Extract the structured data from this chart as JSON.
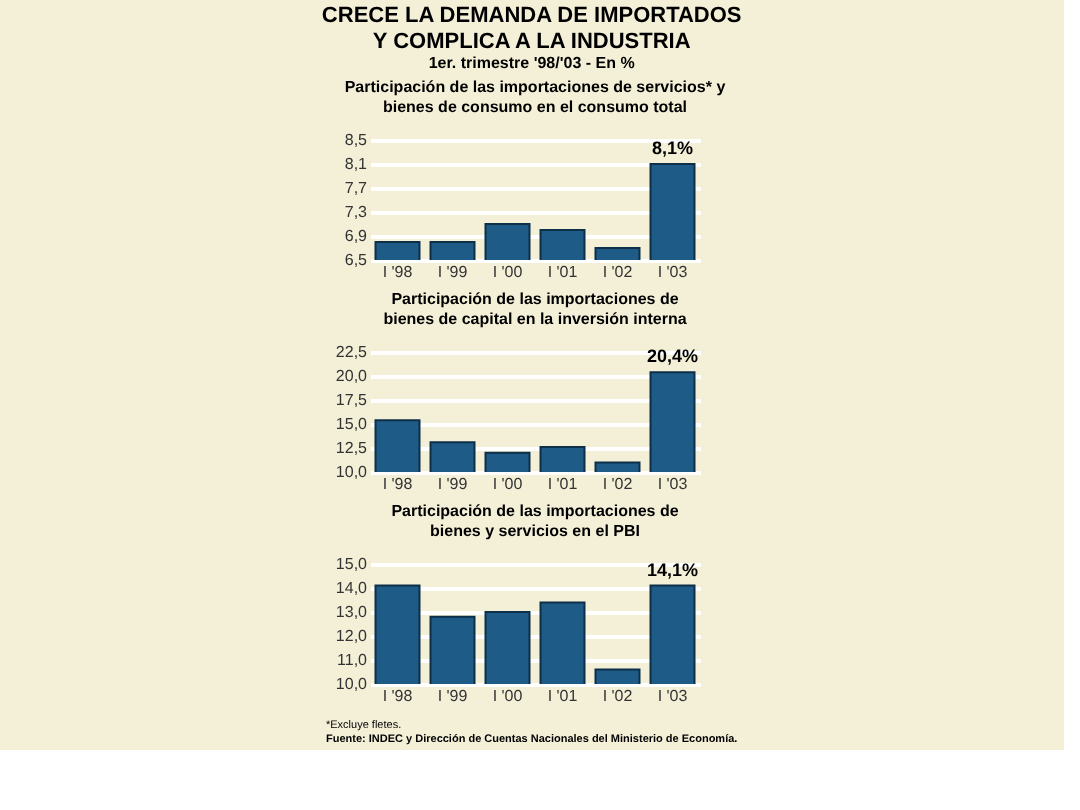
{
  "chart_data": [
    {
      "type": "other",
      "title": "CRECE LA DEMANDA DE IMPORTADOS\nY COMPLICA A LA INDUSTRIA",
      "subtitle": "1er. trimestre '98/'03 - En %"
    },
    {
      "type": "bar",
      "title": "Participación de las importaciones de servicios* y\nbienes de consumo en el consumo total",
      "categories": [
        "I '98",
        "I '99",
        "I '00",
        "I '01",
        "I '02",
        "I '03"
      ],
      "values": [
        6.8,
        6.8,
        7.1,
        7.0,
        6.7,
        8.1
      ],
      "color": "#1f5b87",
      "ylim": [
        6.5,
        8.5
      ],
      "yticks": [
        {
          "value": 6.5,
          "label": "6,5"
        },
        {
          "value": 6.9,
          "label": "6,9"
        },
        {
          "value": 7.3,
          "label": "7,3"
        },
        {
          "value": 7.7,
          "label": "7,7"
        },
        {
          "value": 8.1,
          "label": "8,1"
        },
        {
          "value": 8.5,
          "label": "8,5"
        }
      ],
      "grid": "y",
      "annotations": [
        {
          "text": "8,1%",
          "x": "I '03",
          "y": 8.1
        }
      ]
    },
    {
      "type": "bar",
      "title": "Participación de las importaciones de\nbienes de capital en la inversión interna",
      "categories": [
        "I '98",
        "I '99",
        "I '00",
        "I '01",
        "I '02",
        "I '03"
      ],
      "values": [
        15.4,
        13.1,
        12.0,
        12.6,
        11.0,
        20.4
      ],
      "color": "#1f5b87",
      "ylim": [
        10.0,
        22.5
      ],
      "yticks": [
        {
          "value": 10,
          "label": "10,0"
        },
        {
          "value": 12.5,
          "label": "12,5"
        },
        {
          "value": 15,
          "label": "15,0"
        },
        {
          "value": 17.5,
          "label": "17,5"
        },
        {
          "value": 20,
          "label": "20,0"
        },
        {
          "value": 22.5,
          "label": "22,5"
        }
      ],
      "grid": "y",
      "annotations": [
        {
          "text": "20,4%",
          "x": "I '03",
          "y": 20.4
        }
      ]
    },
    {
      "type": "bar",
      "title": "Participación de las importaciones de\nbienes y servicios en el PBI",
      "categories": [
        "I '98",
        "I '99",
        "I '00",
        "I '01",
        "I '02",
        "I '03"
      ],
      "values": [
        14.1,
        12.8,
        13.0,
        13.4,
        10.6,
        14.1
      ],
      "color": "#1f5b87",
      "ylim": [
        10.0,
        15.0
      ],
      "yticks": [
        {
          "value": 10,
          "label": "10,0"
        },
        {
          "value": 11,
          "label": "11,0"
        },
        {
          "value": 12,
          "label": "12,0"
        },
        {
          "value": 13,
          "label": "13,0"
        },
        {
          "value": 14,
          "label": "14,0"
        },
        {
          "value": 15,
          "label": "15,0"
        }
      ],
      "grid": "y",
      "annotations": [
        {
          "text": "14,1%",
          "x": "I '03",
          "y": 14.1
        },
        "*Excluye fletes.",
        "Fuente: INDEC y Dirección de Cuentas Nacionales del Ministerio de Economía."
      ]
    }
  ]
}
